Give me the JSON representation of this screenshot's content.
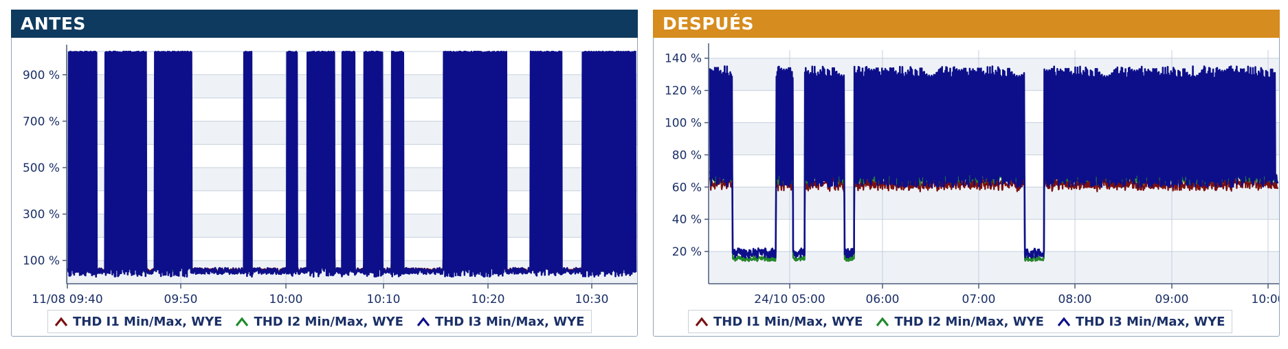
{
  "chart_data": [
    {
      "type": "line",
      "title": "ANTES",
      "header_color": "#0f3a5f",
      "x_ticks": [
        "11/08 09:40",
        "09:50",
        "10:00",
        "10:10",
        "10:20",
        "10:30"
      ],
      "y_ticks": [
        "100 %",
        "300 %",
        "500 %",
        "700 %",
        "900 %"
      ],
      "ylim": [
        0,
        1000
      ],
      "y_unit": "%",
      "x_range": [
        "11/08 09:40",
        "11/08 10:35"
      ],
      "grid": true,
      "legend_position": "bottom",
      "series": [
        {
          "name": "THD I1 Min/Max, WYE",
          "color": "#7a1010",
          "baseline": 60
        },
        {
          "name": "THD I2 Min/Max, WYE",
          "color": "#1f8a2a",
          "baseline": 55
        },
        {
          "name": "THD I3 Min/Max, WYE",
          "color": "#0d0f8a",
          "baseline": 55,
          "max": 1000
        }
      ]
    },
    {
      "type": "line",
      "title": "DESPUÉS",
      "header_color": "#d68c1e",
      "x_ticks": [
        "24/10 05:00",
        "06:00",
        "07:00",
        "08:00",
        "09:00",
        "10:00"
      ],
      "y_ticks": [
        "20 %",
        "40 %",
        "60 %",
        "80 %",
        "100 %",
        "120 %",
        "140 %"
      ],
      "ylim": [
        0,
        145
      ],
      "y_unit": "%",
      "x_range": [
        "24/10 04:00",
        "24/10 10:10"
      ],
      "grid": true,
      "legend_position": "bottom",
      "series": [
        {
          "name": "THD I1 Min/Max, WYE",
          "color": "#7a1010",
          "baseline": 60
        },
        {
          "name": "THD I2 Min/Max, WYE",
          "color": "#1f8a2a",
          "baseline": 64
        },
        {
          "name": "THD I3 Min/Max, WYE",
          "color": "#0d0f8a",
          "baseline": 64,
          "max": 135
        }
      ]
    }
  ]
}
